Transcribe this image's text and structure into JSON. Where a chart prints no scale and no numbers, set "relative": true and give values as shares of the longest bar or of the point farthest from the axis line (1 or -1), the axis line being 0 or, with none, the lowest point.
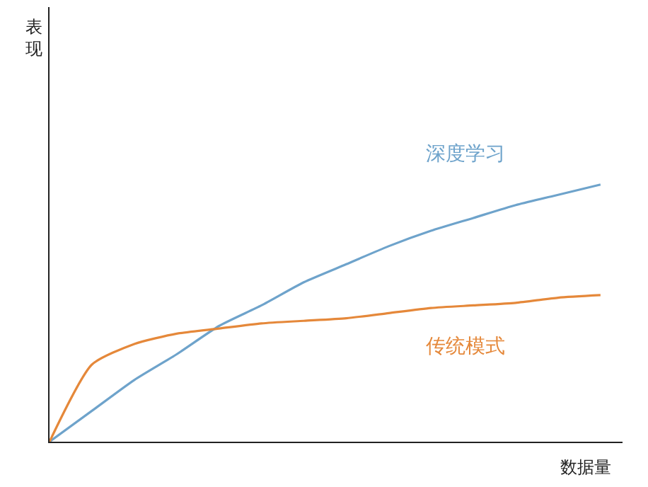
{
  "chart_data": {
    "type": "line",
    "relative": true,
    "xlabel": "数据量",
    "annotations": [
      "表现"
    ],
    "legend": false,
    "marker": "none",
    "line_style": "solid",
    "categories": [
      null,
      null,
      null,
      null,
      null,
      null,
      null,
      null,
      null,
      null,
      null,
      null,
      null,
      null
    ],
    "series": [
      {
        "name": "深度学习",
        "color": "#6ea3cb",
        "values": [
          0,
          0.12,
          0.24,
          0.34,
          0.45,
          0.53,
          0.62,
          0.69,
          0.76,
          0.82,
          0.87,
          0.92,
          0.96,
          1
        ]
      },
      {
        "name": "传统模式",
        "color": "#e5883a",
        "values": [
          0,
          0.3,
          0.38,
          0.42,
          0.44,
          0.46,
          0.47,
          0.48,
          0.5,
          0.52,
          0.53,
          0.54,
          0.56,
          0.57
        ]
      }
    ]
  }
}
